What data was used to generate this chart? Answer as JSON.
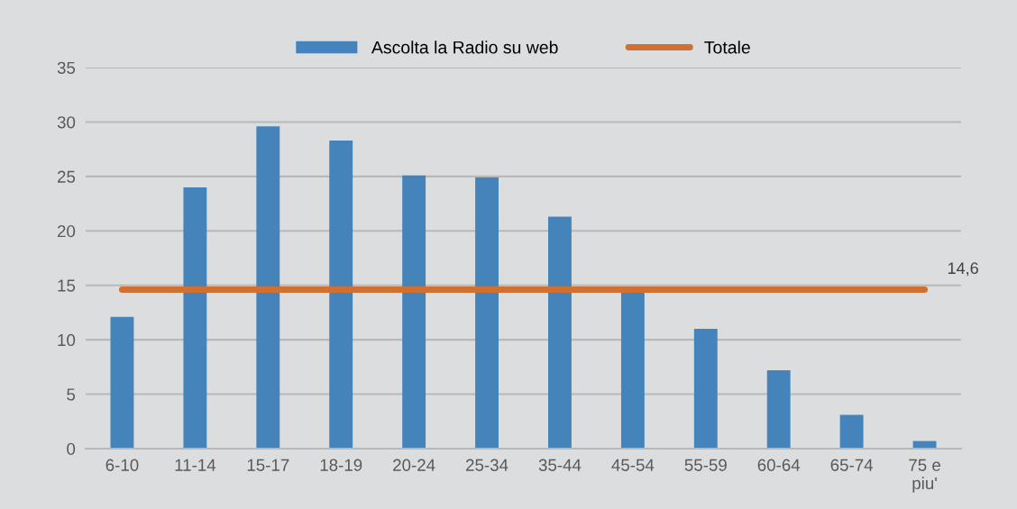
{
  "chart_data": {
    "type": "bar",
    "categories": [
      "6-10",
      "11-14",
      "15-17",
      "18-19",
      "20-24",
      "25-34",
      "35-44",
      "45-54",
      "55-59",
      "60-64",
      "65-74",
      "75 e\npiu'"
    ],
    "series": [
      {
        "name": "Ascolta la Radio su web",
        "color": "#4484ba",
        "values": [
          12.1,
          24.0,
          29.6,
          28.3,
          25.1,
          24.9,
          21.3,
          14.4,
          11.0,
          7.2,
          3.1,
          0.7
        ]
      },
      {
        "name": "Totale",
        "type": "line",
        "color": "#d07132",
        "values": [
          14.6,
          14.6,
          14.6,
          14.6,
          14.6,
          14.6,
          14.6,
          14.6,
          14.6,
          14.6,
          14.6,
          14.6
        ],
        "value_labels": [
          null,
          null,
          null,
          null,
          null,
          null,
          null,
          null,
          null,
          null,
          null,
          "14,6"
        ]
      }
    ],
    "ylim": [
      0,
      35
    ],
    "yticks": [
      0,
      5,
      10,
      15,
      20,
      25,
      30,
      35
    ],
    "grid": "y",
    "legend": "top"
  }
}
